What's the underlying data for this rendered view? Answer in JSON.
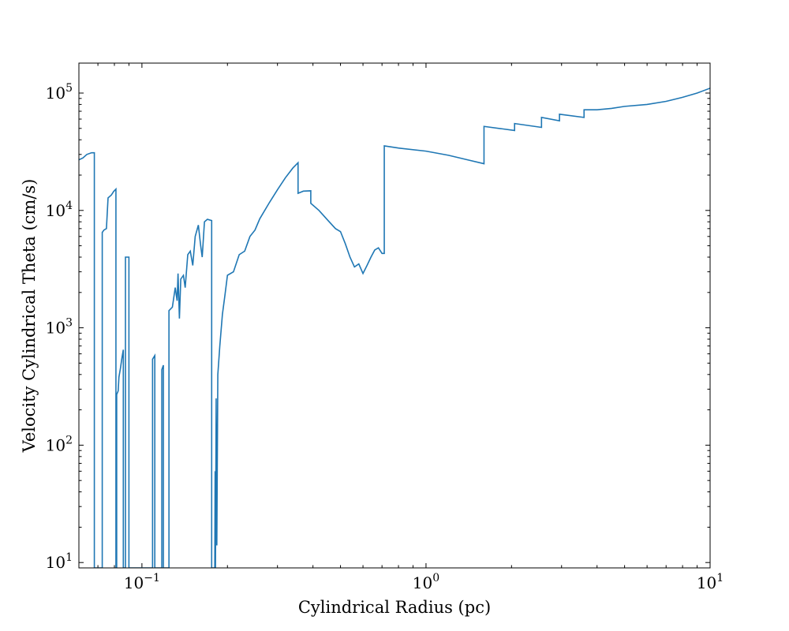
{
  "chart_data": {
    "type": "line",
    "drawstyle": "steps",
    "title": "",
    "xlabel": "Cylindrical Radius  (pc)",
    "ylabel": "Velocity Cylindrical Theta  (cm/s)",
    "xscale": "log",
    "yscale": "log",
    "xlim": [
      0.06,
      10
    ],
    "ylim": [
      9,
      180000
    ],
    "grid": false,
    "legend": "none",
    "line_color": "#1f77b4",
    "x_ticks": [
      {
        "value": 0.1,
        "base": "10",
        "exp": "−1"
      },
      {
        "value": 1,
        "base": "10",
        "exp": "0"
      },
      {
        "value": 10,
        "base": "10",
        "exp": "1"
      }
    ],
    "y_ticks": [
      {
        "value": 10,
        "base": "10",
        "exp": "1"
      },
      {
        "value": 100,
        "base": "10",
        "exp": "2"
      },
      {
        "value": 1000,
        "base": "10",
        "exp": "3"
      },
      {
        "value": 10000,
        "base": "10",
        "exp": "4"
      },
      {
        "value": 100000,
        "base": "10",
        "exp": "5"
      }
    ],
    "series": [
      {
        "points": [
          [
            0.06,
            27000
          ],
          [
            0.062,
            28000
          ],
          [
            0.064,
            30000
          ],
          [
            0.0665,
            31000
          ],
          [
            0.068,
            31000
          ],
          [
            0.068,
            9
          ],
          [
            0.0725,
            9
          ],
          [
            0.0725,
            6500
          ],
          [
            0.0735,
            6800
          ],
          [
            0.075,
            7000
          ],
          [
            0.076,
            12800
          ],
          [
            0.078,
            13500
          ],
          [
            0.0795,
            14500
          ],
          [
            0.081,
            15200
          ],
          [
            0.081,
            9
          ],
          [
            0.0815,
            9
          ],
          [
            0.0815,
            270
          ],
          [
            0.0825,
            290
          ],
          [
            0.083,
            380
          ],
          [
            0.084,
            450
          ],
          [
            0.085,
            550
          ],
          [
            0.086,
            650
          ],
          [
            0.086,
            9
          ],
          [
            0.0875,
            9
          ],
          [
            0.0875,
            4000
          ],
          [
            0.09,
            4000
          ],
          [
            0.09,
            9
          ],
          [
            0.109,
            9
          ],
          [
            0.109,
            540
          ],
          [
            0.111,
            580
          ],
          [
            0.111,
            9
          ],
          [
            0.1175,
            9
          ],
          [
            0.1175,
            440
          ],
          [
            0.119,
            480
          ],
          [
            0.119,
            9
          ],
          [
            0.1245,
            9
          ],
          [
            0.1245,
            1400
          ],
          [
            0.128,
            1500
          ],
          [
            0.131,
            2200
          ],
          [
            0.133,
            1700
          ],
          [
            0.134,
            2900
          ],
          [
            0.1355,
            1200
          ],
          [
            0.137,
            2600
          ],
          [
            0.14,
            2800
          ],
          [
            0.142,
            2200
          ],
          [
            0.145,
            4200
          ],
          [
            0.148,
            4500
          ],
          [
            0.151,
            3400
          ],
          [
            0.154,
            6000
          ],
          [
            0.158,
            7500
          ],
          [
            0.161,
            5000
          ],
          [
            0.163,
            4000
          ],
          [
            0.166,
            8000
          ],
          [
            0.17,
            8400
          ],
          [
            0.176,
            8200
          ],
          [
            0.176,
            9
          ],
          [
            0.1805,
            9
          ],
          [
            0.181,
            60
          ],
          [
            0.1815,
            9
          ],
          [
            0.1825,
            250
          ],
          [
            0.1835,
            14
          ],
          [
            0.185,
            400
          ],
          [
            0.188,
            700
          ],
          [
            0.192,
            1300
          ],
          [
            0.196,
            1900
          ],
          [
            0.2,
            2800
          ],
          [
            0.21,
            3000
          ],
          [
            0.22,
            4200
          ],
          [
            0.23,
            4500
          ],
          [
            0.24,
            6000
          ],
          [
            0.25,
            6800
          ],
          [
            0.26,
            8500
          ],
          [
            0.28,
            11500
          ],
          [
            0.3,
            15000
          ],
          [
            0.32,
            19000
          ],
          [
            0.34,
            23000
          ],
          [
            0.3545,
            25500
          ],
          [
            0.3545,
            14000
          ],
          [
            0.37,
            14600
          ],
          [
            0.393,
            14700
          ],
          [
            0.393,
            11500
          ],
          [
            0.42,
            10000
          ],
          [
            0.45,
            8300
          ],
          [
            0.48,
            7000
          ],
          [
            0.5,
            6600
          ],
          [
            0.52,
            5200
          ],
          [
            0.54,
            4000
          ],
          [
            0.56,
            3300
          ],
          [
            0.58,
            3500
          ],
          [
            0.6,
            2900
          ],
          [
            0.62,
            3400
          ],
          [
            0.64,
            4000
          ],
          [
            0.66,
            4600
          ],
          [
            0.68,
            4800
          ],
          [
            0.7,
            4300
          ],
          [
            0.713,
            4300
          ],
          [
            0.713,
            35500
          ],
          [
            0.8,
            34000
          ],
          [
            1.0,
            32000
          ],
          [
            1.2,
            29500
          ],
          [
            1.4,
            27000
          ],
          [
            1.6,
            25000
          ],
          [
            1.6,
            52000
          ],
          [
            2.05,
            48000
          ],
          [
            2.05,
            55000
          ],
          [
            2.55,
            51000
          ],
          [
            2.55,
            62000
          ],
          [
            2.95,
            58000
          ],
          [
            2.95,
            66000
          ],
          [
            3.6,
            62000
          ],
          [
            3.6,
            72000
          ],
          [
            4.0,
            72000
          ],
          [
            4.5,
            74000
          ],
          [
            5.0,
            77000
          ],
          [
            6.0,
            80000
          ],
          [
            7.0,
            85000
          ],
          [
            8.0,
            92000
          ],
          [
            9.0,
            100000
          ],
          [
            10.0,
            110000
          ]
        ]
      }
    ]
  }
}
